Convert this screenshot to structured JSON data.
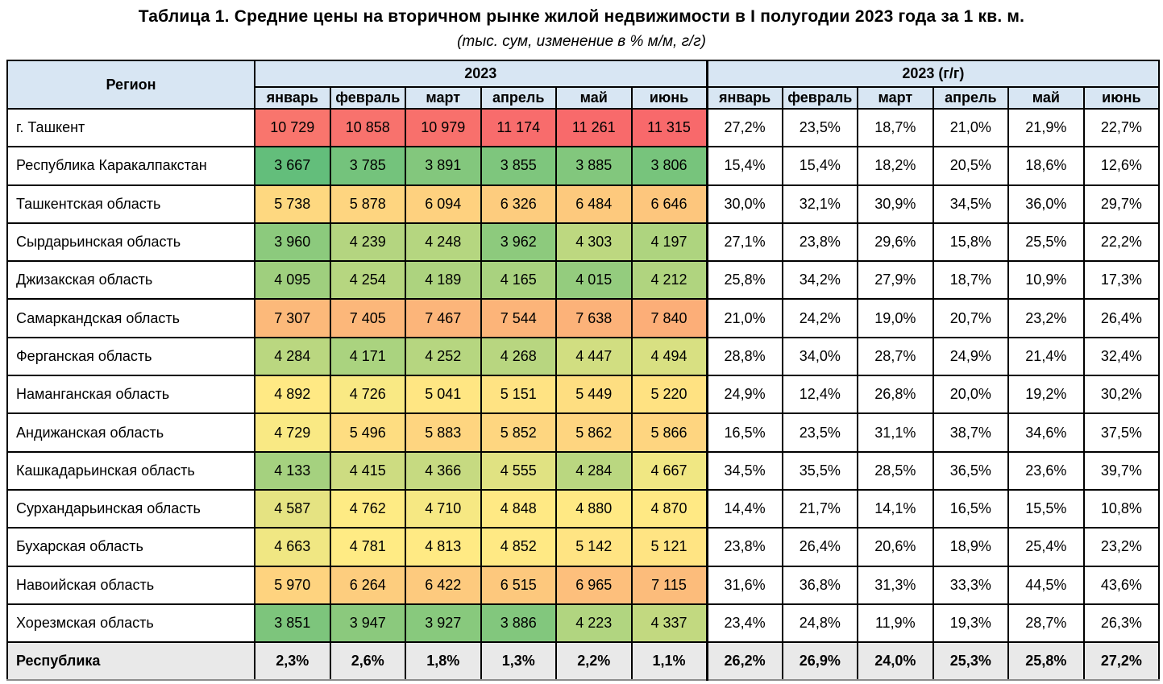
{
  "title": "Таблица 1. Средние цены на вторичном рынке жилой недвижимости в I полугодии 2023 года за 1 кв. м.",
  "subtitle": "(тыс. сум, изменение в % м/м, г/г)",
  "colors": {
    "header_bg": "#D8E6F3",
    "total_row_bg": "#E9E9E9",
    "border": "#000000",
    "heatmap_min": "#63BE7B",
    "heatmap_mid": "#FFEB84",
    "heatmap_max": "#F8696B"
  },
  "chart_data": {
    "type": "table",
    "title": "Таблица 1. Средние цены на вторичном рынке жилой недвижимости в I полугодии 2023 года за 1 кв. м.",
    "subtitle": "(тыс. сум, изменение в % м/м, г/г)",
    "region_column_label": "Регион",
    "column_groups": [
      "2023",
      "2023 (г/г)"
    ],
    "months": [
      "январь",
      "февраль",
      "март",
      "апрель",
      "май",
      "июнь"
    ],
    "heatmap": {
      "note": "3-color scale on monthly price cells",
      "min": 3667,
      "mid": 4772,
      "max": 11315,
      "min_color": "#63BE7B",
      "mid_color": "#FFEB84",
      "max_color": "#F8696B"
    },
    "rows": [
      {
        "region": "г. Ташкент",
        "prices": [
          10729,
          10858,
          10979,
          11174,
          11261,
          11315
        ],
        "yoy_pct": [
          "27,2%",
          "23,5%",
          "18,7%",
          "21,0%",
          "21,9%",
          "22,7%"
        ]
      },
      {
        "region": "Республика Каракалпакстан",
        "prices": [
          3667,
          3785,
          3891,
          3855,
          3885,
          3806
        ],
        "yoy_pct": [
          "15,4%",
          "15,4%",
          "18,2%",
          "20,5%",
          "18,6%",
          "12,6%"
        ]
      },
      {
        "region": "Ташкентская область",
        "prices": [
          5738,
          5878,
          6094,
          6326,
          6484,
          6646
        ],
        "yoy_pct": [
          "30,0%",
          "32,1%",
          "30,9%",
          "34,5%",
          "36,0%",
          "29,7%"
        ]
      },
      {
        "region": "Сырдарьинская область",
        "prices": [
          3960,
          4239,
          4248,
          3962,
          4303,
          4197
        ],
        "yoy_pct": [
          "27,1%",
          "23,8%",
          "29,6%",
          "15,8%",
          "25,5%",
          "22,2%"
        ]
      },
      {
        "region": "Джизакская область",
        "prices": [
          4095,
          4254,
          4189,
          4165,
          4015,
          4212
        ],
        "yoy_pct": [
          "25,8%",
          "34,2%",
          "27,9%",
          "18,7%",
          "10,9%",
          "17,3%"
        ]
      },
      {
        "region": "Самаркандская область",
        "prices": [
          7307,
          7405,
          7467,
          7544,
          7638,
          7840
        ],
        "yoy_pct": [
          "21,0%",
          "24,2%",
          "19,0%",
          "20,7%",
          "23,2%",
          "26,4%"
        ]
      },
      {
        "region": "Ферганская область",
        "prices": [
          4284,
          4171,
          4252,
          4268,
          4447,
          4494
        ],
        "yoy_pct": [
          "28,8%",
          "34,0%",
          "28,7%",
          "24,9%",
          "21,4%",
          "32,4%"
        ]
      },
      {
        "region": "Наманганская область",
        "prices": [
          4892,
          4726,
          5041,
          5151,
          5449,
          5220
        ],
        "yoy_pct": [
          "24,9%",
          "12,4%",
          "26,8%",
          "20,0%",
          "19,2%",
          "30,2%"
        ]
      },
      {
        "region": "Андижанская область",
        "prices": [
          4729,
          5496,
          5883,
          5852,
          5862,
          5866
        ],
        "yoy_pct": [
          "16,5%",
          "23,5%",
          "31,1%",
          "38,7%",
          "34,6%",
          "37,5%"
        ]
      },
      {
        "region": "Кашкадарьинская область",
        "prices": [
          4133,
          4415,
          4366,
          4555,
          4284,
          4667
        ],
        "yoy_pct": [
          "34,5%",
          "35,5%",
          "28,5%",
          "36,5%",
          "23,6%",
          "39,7%"
        ]
      },
      {
        "region": "Сурхандарьинская область",
        "prices": [
          4587,
          4762,
          4710,
          4848,
          4880,
          4870
        ],
        "yoy_pct": [
          "14,4%",
          "21,7%",
          "14,1%",
          "16,5%",
          "15,5%",
          "10,8%"
        ]
      },
      {
        "region": "Бухарская область",
        "prices": [
          4663,
          4781,
          4813,
          4852,
          5142,
          5121
        ],
        "yoy_pct": [
          "23,8%",
          "26,4%",
          "20,6%",
          "18,9%",
          "25,4%",
          "23,2%"
        ]
      },
      {
        "region": "Навоийская область",
        "prices": [
          5970,
          6264,
          6422,
          6515,
          6965,
          7115
        ],
        "yoy_pct": [
          "31,6%",
          "36,8%",
          "31,3%",
          "33,3%",
          "44,5%",
          "43,6%"
        ]
      },
      {
        "region": "Хорезмская область",
        "prices": [
          3851,
          3947,
          3927,
          3886,
          4223,
          4337
        ],
        "yoy_pct": [
          "23,4%",
          "24,8%",
          "11,9%",
          "19,3%",
          "28,7%",
          "26,3%"
        ]
      }
    ],
    "total_row": {
      "region": "Республика",
      "mom_pct": [
        "2,3%",
        "2,6%",
        "1,8%",
        "1,3%",
        "2,2%",
        "1,1%"
      ],
      "yoy_pct": [
        "26,2%",
        "26,9%",
        "24,0%",
        "25,3%",
        "25,8%",
        "27,2%"
      ]
    }
  }
}
